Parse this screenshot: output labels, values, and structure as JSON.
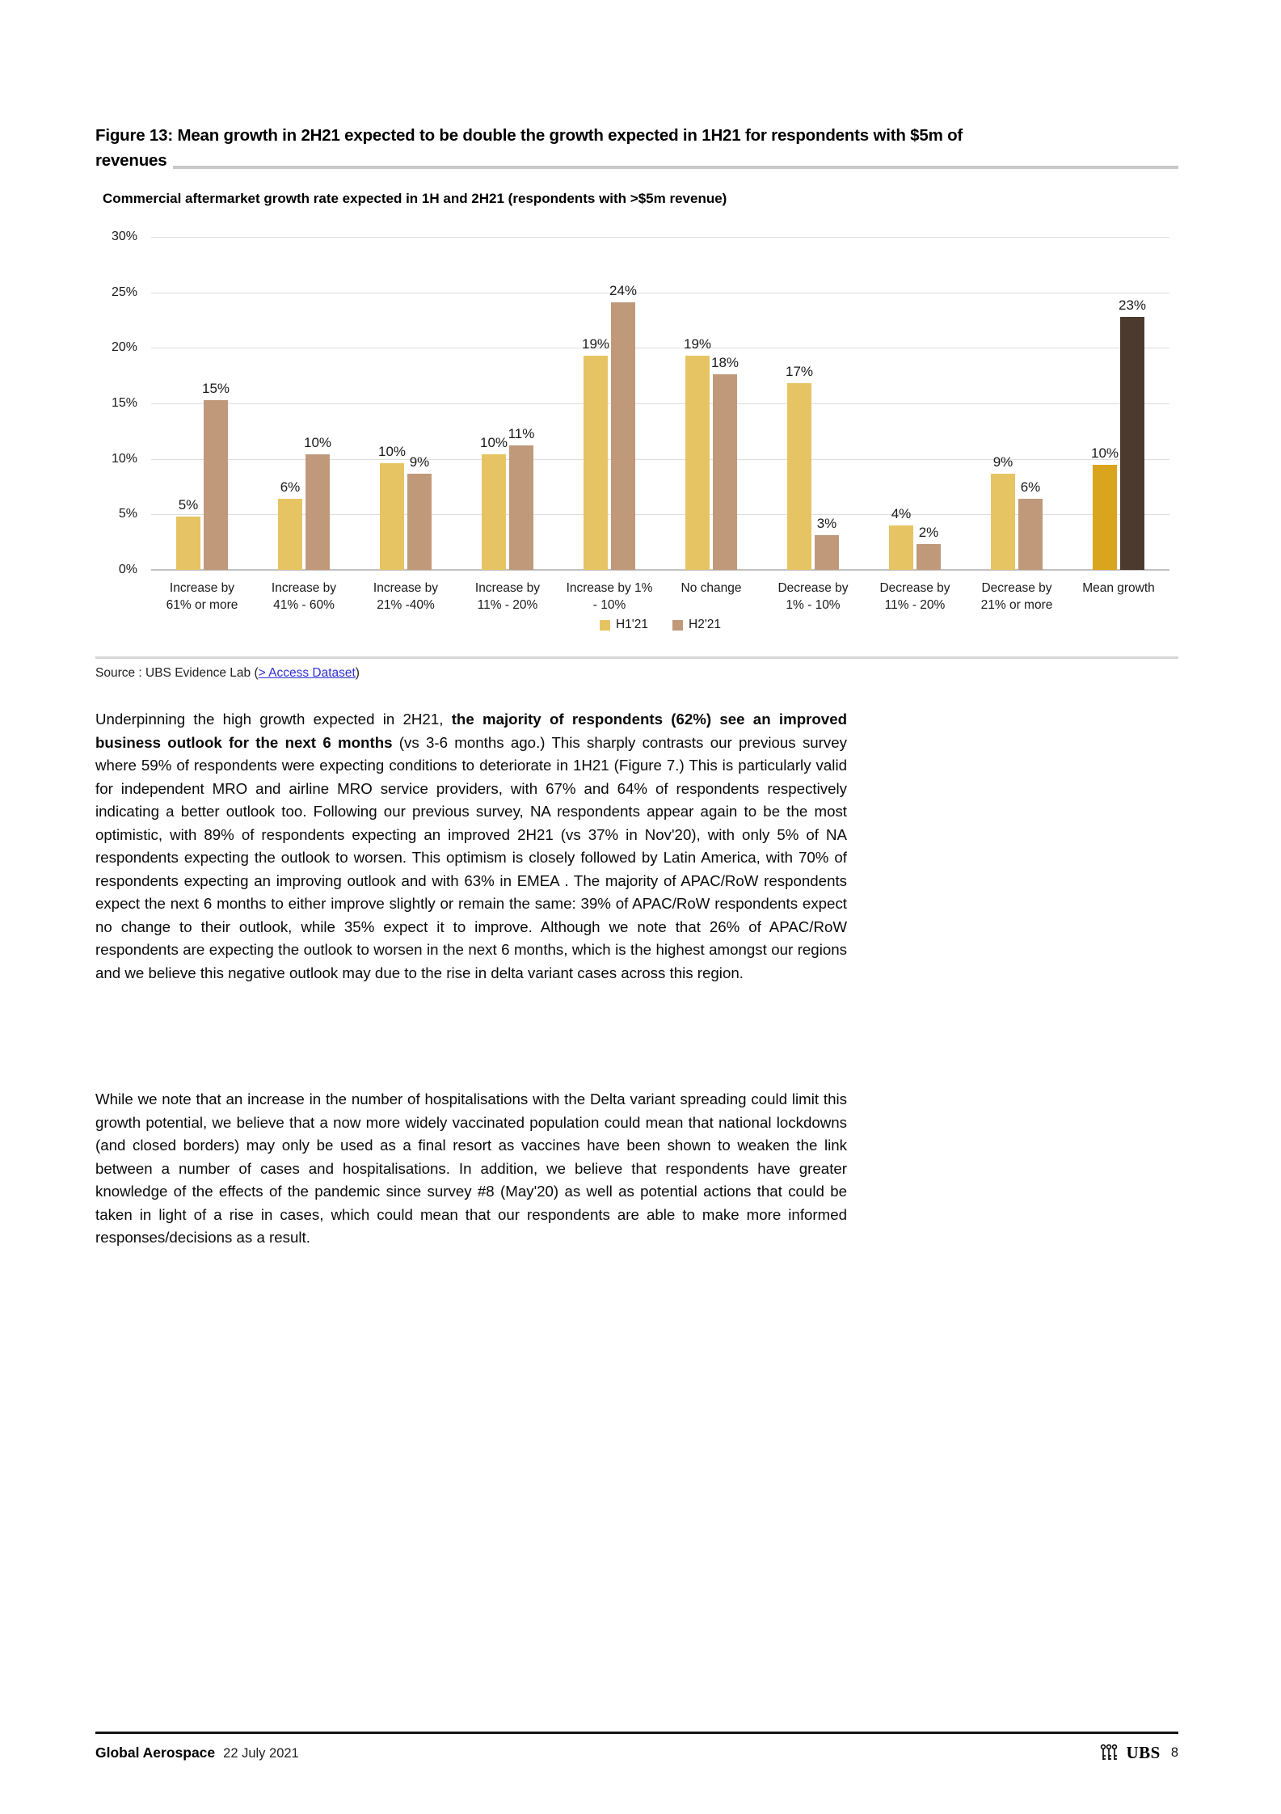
{
  "figure": {
    "title_line1": "Figure 13: Mean growth in 2H21 expected to be double the growth expected in 1H21 for respondents with $5m of",
    "title_line2": "revenues",
    "subtitle": "Commercial aftermarket growth rate expected in 1H and 2H21 (respondents with >$5m revenue)"
  },
  "chart_data": {
    "type": "bar",
    "title": "Commercial aftermarket growth rate expected in 1H and 2H21 (respondents with >$5m revenue)",
    "xlabel": "",
    "ylabel": "",
    "ylim": [
      0,
      30
    ],
    "yticks": [
      "30%",
      "25%",
      "20%",
      "15%",
      "10%",
      "5%",
      "0%"
    ],
    "grid": true,
    "legend_position": "bottom-center",
    "categories": [
      [
        "Increase by",
        "61% or more"
      ],
      [
        "Increase by",
        "41% - 60%"
      ],
      [
        "Increase by",
        "21% -40%"
      ],
      [
        "Increase by",
        "11% - 20%"
      ],
      [
        "Increase by 1%",
        "- 10%"
      ],
      [
        "No change"
      ],
      [
        "Decrease by",
        "1% - 10%"
      ],
      [
        "Decrease by",
        "11% - 20%"
      ],
      [
        "Decrease by",
        "21% or more"
      ],
      [
        "Mean growth"
      ]
    ],
    "series": [
      {
        "name": "H1'21",
        "color": "#E7C463",
        "values": [
          4.8,
          6.4,
          9.6,
          10.4,
          19.3,
          19.3,
          16.8,
          4.0,
          8.7,
          9.5
        ],
        "labels": [
          "5%",
          "6%",
          "10%",
          "10%",
          "19%",
          "19%",
          "17%",
          "4%",
          "9%",
          "10%"
        ],
        "color_overrides": {
          "9": "#D9A41E"
        }
      },
      {
        "name": "H2'21",
        "color": "#C0997B",
        "values": [
          15.3,
          10.4,
          8.7,
          11.2,
          24.1,
          17.6,
          3.1,
          2.3,
          6.4,
          22.8
        ],
        "labels": [
          "15%",
          "10%",
          "9%",
          "11%",
          "24%",
          "18%",
          "3%",
          "2%",
          "6%",
          "23%"
        ],
        "color_overrides": {
          "9": "#4C3A2E"
        }
      }
    ]
  },
  "source": {
    "prefix": "Source : UBS Evidence Lab (",
    "link": "> Access Dataset",
    "suffix": ")"
  },
  "paragraphs": {
    "p1": [
      {
        "t": "Underpinning the high growth expected in 2H21, ",
        "b": false
      },
      {
        "t": "the majority of respondents (62%) see an improved business outlook for the next 6 months",
        "b": true
      },
      {
        "t": " (vs 3-6 months ago.) This sharply contrasts our previous survey where 59% of respondents were expecting conditions to deteriorate in 1H21 (Figure 7.) This is particularly valid for independent MRO and airline MRO service providers, with 67% and 64% of respondents respectively indicating a better outlook too. Following our previous survey, NA respondents appear again to be the most optimistic, with 89% of respondents expecting an improved 2H21 (vs 37% in Nov'20), with only 5% of NA respondents expecting the outlook to worsen. This optimism is closely followed by Latin America, with 70% of respondents expecting an improving outlook and with 63% in EMEA . The majority of APAC/RoW respondents expect the next 6 months to either improve slightly or remain the same: 39% of APAC/RoW respondents expect no change to their outlook, while 35% expect it to improve. Although we note that 26% of APAC/RoW respondents are expecting the outlook to worsen in the next 6 months, which is the highest amongst our regions and we believe this negative outlook may due to the rise in delta variant cases across this region.",
        "b": false
      }
    ],
    "p2": [
      {
        "t": "While we note that an increase in the number of hospitalisations with the Delta variant spreading could limit this growth potential, we believe that a now more widely vaccinated population could mean that national lockdowns (and closed borders) may only be used as a final resort as vaccines have been shown to weaken the link between a number of cases and hospitalisations. In addition, we believe that respondents have greater knowledge of the effects of the pandemic since survey #8 (May'20) as well as potential actions that could be taken in light of a rise in cases, which could mean that our respondents are able to make more informed responses/decisions as a result.",
        "b": false
      }
    ]
  },
  "footer": {
    "title": "Global Aerospace",
    "date": "22 July 2021",
    "brand": "UBS",
    "page": "8"
  }
}
